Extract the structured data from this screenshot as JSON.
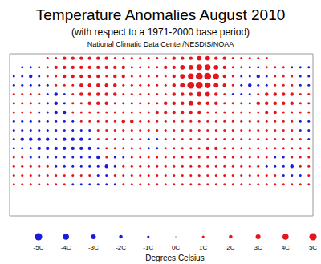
{
  "chart_data": {
    "type": "scatter",
    "title": "Temperature Anomalies August 2010",
    "subtitle": "(with respect to a 1971-2000 base period)",
    "source": "National Climatic Data Center/NESDIS/NOAA",
    "xlim": [
      -180,
      180
    ],
    "ylim": [
      -90,
      90
    ],
    "tick_labels": false,
    "grid": false,
    "x": [
      -175,
      -165,
      -155,
      -145,
      -135,
      -125,
      -115,
      -105,
      -95,
      -85,
      -75,
      -65,
      -55,
      -45,
      -35,
      -25,
      -15,
      -5,
      5,
      15,
      25,
      35,
      45,
      55,
      65,
      75,
      85,
      95,
      105,
      115,
      125,
      135,
      145,
      155,
      165,
      175
    ],
    "y": [
      85,
      75,
      65,
      55,
      45,
      35,
      25,
      15,
      5,
      -5,
      -15,
      -25,
      -35,
      -45,
      -55
    ],
    "cells": [
      [
        null,
        null,
        null,
        null,
        1,
        1,
        2,
        2,
        2,
        2,
        2,
        2,
        1,
        1,
        1,
        1,
        1,
        1,
        1,
        2,
        2,
        2,
        3,
        3,
        2,
        2,
        1,
        1,
        1,
        1,
        1,
        null,
        null,
        null,
        null,
        null
      ],
      [
        null,
        -1,
        -1,
        1,
        1,
        2,
        2,
        2,
        2,
        2,
        2,
        2,
        2,
        2,
        1,
        1,
        1,
        1,
        2,
        2,
        3,
        3,
        4,
        4,
        3,
        2,
        1,
        1,
        -1,
        -1,
        1,
        1,
        1,
        -1,
        -1,
        -1
      ],
      [
        -1,
        -1,
        -2,
        -1,
        1,
        1,
        2,
        2,
        2,
        2,
        2,
        1,
        2,
        2,
        1,
        1,
        1,
        1,
        1,
        2,
        3,
        4,
        5,
        5,
        4,
        2,
        1,
        -1,
        -1,
        -2,
        -1,
        1,
        1,
        1,
        -1,
        -1
      ],
      [
        -1,
        -1,
        -1,
        -1,
        -1,
        1,
        1,
        1,
        2,
        2,
        2,
        2,
        2,
        1,
        1,
        1,
        1,
        1,
        1,
        2,
        3,
        5,
        5,
        4,
        3,
        2,
        1,
        -1,
        -2,
        -1,
        -1,
        1,
        1,
        1,
        -1,
        -1
      ],
      [
        1,
        1,
        1,
        1,
        -1,
        -2,
        -1,
        1,
        2,
        2,
        2,
        2,
        2,
        1,
        1,
        1,
        1,
        1,
        1,
        2,
        2,
        2,
        3,
        3,
        2,
        1,
        -1,
        -1,
        -1,
        1,
        2,
        2,
        2,
        2,
        1,
        1
      ],
      [
        1,
        1,
        1,
        1,
        -1,
        -2,
        -1,
        1,
        1,
        2,
        2,
        2,
        1,
        1,
        1,
        1,
        1,
        1,
        2,
        2,
        2,
        3,
        2,
        2,
        2,
        1,
        1,
        1,
        1,
        2,
        2,
        2,
        2,
        2,
        1,
        1
      ],
      [
        1,
        1,
        1,
        -1,
        -1,
        -2,
        -2,
        1,
        1,
        1,
        1,
        1,
        1,
        1,
        1,
        1,
        1,
        2,
        2,
        2,
        2,
        2,
        2,
        1,
        1,
        1,
        1,
        1,
        1,
        1,
        2,
        2,
        1,
        1,
        1,
        1
      ],
      [
        -1,
        -1,
        -1,
        -1,
        -1,
        -1,
        -1,
        -1,
        1,
        1,
        1,
        1,
        1,
        2,
        2,
        1,
        1,
        1,
        1,
        1,
        1,
        1,
        1,
        1,
        1,
        1,
        1,
        1,
        1,
        1,
        1,
        1,
        1,
        1,
        -1,
        -1
      ],
      [
        -1,
        -1,
        -1,
        -1,
        -1,
        -1,
        -1,
        -1,
        -1,
        -1,
        1,
        1,
        1,
        1,
        1,
        1,
        1,
        1,
        1,
        1,
        1,
        1,
        1,
        1,
        1,
        1,
        1,
        1,
        1,
        1,
        1,
        1,
        1,
        1,
        -1,
        -1
      ],
      [
        -1,
        -2,
        -2,
        -2,
        -2,
        -1,
        -2,
        -2,
        -2,
        -1,
        1,
        1,
        1,
        1,
        1,
        1,
        -1,
        -1,
        1,
        1,
        1,
        1,
        1,
        1,
        1,
        1,
        1,
        1,
        1,
        1,
        1,
        1,
        1,
        1,
        1,
        -1
      ],
      [
        -1,
        -1,
        -1,
        -2,
        -2,
        -2,
        -2,
        -2,
        -2,
        -2,
        -1,
        1,
        1,
        1,
        1,
        1,
        -1,
        -1,
        1,
        1,
        1,
        1,
        1,
        2,
        2,
        1,
        1,
        1,
        1,
        1,
        1,
        1,
        1,
        1,
        1,
        1
      ],
      [
        1,
        1,
        -1,
        -1,
        -1,
        -1,
        -1,
        -1,
        -1,
        -1,
        -2,
        1,
        -1,
        -1,
        1,
        1,
        1,
        1,
        1,
        1,
        1,
        1,
        1,
        1,
        1,
        1,
        1,
        1,
        1,
        1,
        1,
        -1,
        -1,
        1,
        1,
        1
      ],
      [
        1,
        1,
        1,
        1,
        1,
        -1,
        -1,
        -1,
        -1,
        -1,
        -1,
        -2,
        -1,
        1,
        1,
        1,
        1,
        1,
        1,
        1,
        1,
        1,
        1,
        1,
        1,
        1,
        1,
        1,
        1,
        1,
        -1,
        -1,
        -1,
        -2,
        1,
        1
      ],
      [
        1,
        1,
        1,
        1,
        1,
        1,
        1,
        1,
        1,
        1,
        -1,
        -1,
        1,
        1,
        1,
        1,
        1,
        1,
        1,
        1,
        1,
        1,
        1,
        1,
        1,
        1,
        1,
        1,
        1,
        1,
        1,
        1,
        -1,
        -1,
        -1,
        1
      ],
      [
        1,
        1,
        1,
        1,
        1,
        1,
        1,
        -1,
        -1,
        -1,
        -1,
        -1,
        -1,
        1,
        1,
        1,
        1,
        1,
        1,
        1,
        1,
        1,
        1,
        1,
        1,
        1,
        1,
        1,
        1,
        1,
        1,
        1,
        1,
        1,
        1,
        1
      ]
    ],
    "colorbar": {
      "range": [
        -5,
        5
      ],
      "label": "Degrees Celsius",
      "ticks": [
        {
          "value": -5,
          "label": "-5C"
        },
        {
          "value": -4,
          "label": "-4C"
        },
        {
          "value": -3,
          "label": "-3C"
        },
        {
          "value": -2,
          "label": "-2C"
        },
        {
          "value": -1,
          "label": "-1C"
        },
        {
          "value": 0,
          "label": "0C"
        },
        {
          "value": 1,
          "label": "1C"
        },
        {
          "value": 2,
          "label": "2C"
        },
        {
          "value": 3,
          "label": "3C"
        },
        {
          "value": 4,
          "label": "4C"
        },
        {
          "value": 5,
          "label": "5C"
        }
      ],
      "colors": [
        "#1c1cd8",
        "#1c1cd8",
        "#1c1cd8",
        "#1c1cd8",
        "#1c1cd8",
        "#888888",
        "#e3161c",
        "#e3161c",
        "#e3161c",
        "#e3161c",
        "#e3161c"
      ]
    }
  }
}
